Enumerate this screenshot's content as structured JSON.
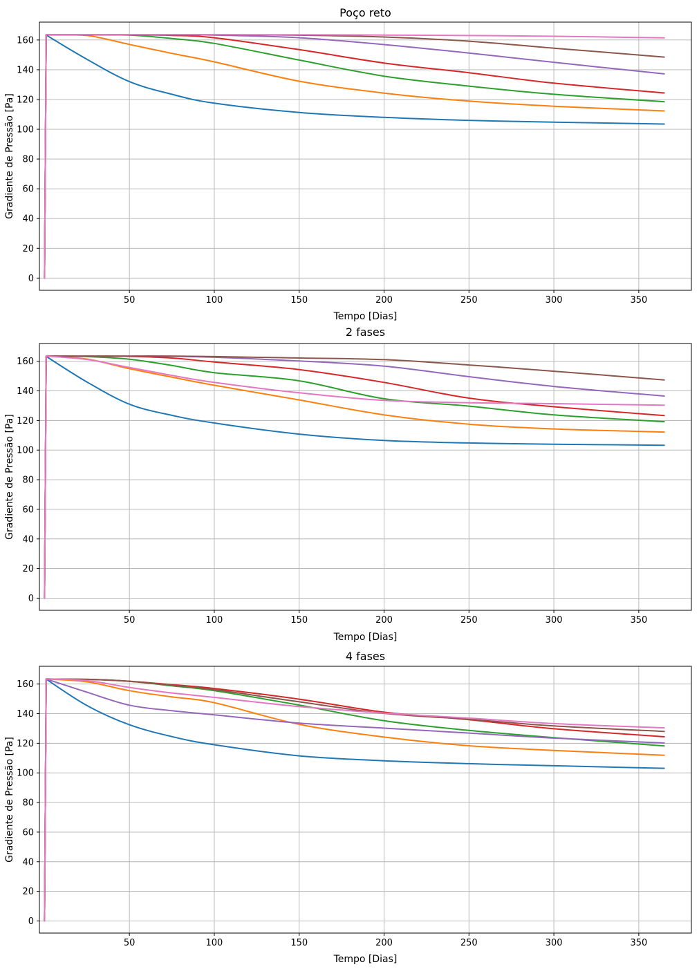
{
  "figure": {
    "background": "#ffffff",
    "grid_color": "#b0b0b0",
    "spine_color": "#000000",
    "text_color": "#000000",
    "line_width": 2
  },
  "chart_data": [
    {
      "type": "line",
      "title": "Poço reto",
      "xlabel": "Tempo [Dias]",
      "ylabel": "Gradiente de Pressão [Pa]",
      "grid": true,
      "legend": "none",
      "xlim": [
        -3,
        381
      ],
      "ylim": [
        -8.2,
        172
      ],
      "x_ticks": [
        50,
        100,
        150,
        200,
        250,
        300,
        350
      ],
      "y_ticks": [
        0,
        20,
        40,
        60,
        80,
        100,
        120,
        140,
        160
      ],
      "x": [
        0,
        1,
        25,
        50,
        75,
        100,
        150,
        200,
        250,
        300,
        365
      ],
      "series": [
        {
          "name": "blue",
          "color": "#1f77b4",
          "values": [
            0,
            163.3,
            147.0,
            132.0,
            123.5,
            117.5,
            111.3,
            108.0,
            106.0,
            104.8,
            103.5
          ]
        },
        {
          "name": "orange",
          "color": "#ff7f0e",
          "values": [
            0,
            163.4,
            163.0,
            157.0,
            151.0,
            145.3,
            132.3,
            124.3,
            118.9,
            115.5,
            112.3
          ]
        },
        {
          "name": "green",
          "color": "#2ca02c",
          "values": [
            0,
            163.4,
            163.4,
            163.3,
            161.0,
            157.7,
            146.5,
            135.7,
            129.0,
            123.5,
            118.5
          ]
        },
        {
          "name": "red",
          "color": "#d62728",
          "values": [
            0,
            163.4,
            163.4,
            163.4,
            163.1,
            161.5,
            153.5,
            144.5,
            138.0,
            131.0,
            124.4
          ]
        },
        {
          "name": "purple",
          "color": "#9467bd",
          "values": [
            0,
            163.5,
            163.5,
            163.5,
            163.5,
            163.3,
            161.5,
            156.9,
            151.2,
            145.0,
            137.2
          ]
        },
        {
          "name": "brown",
          "color": "#8c564b",
          "values": [
            0,
            163.5,
            163.5,
            163.5,
            163.5,
            163.5,
            163.2,
            162.0,
            159.2,
            154.5,
            148.5
          ]
        },
        {
          "name": "pink",
          "color": "#e377c2",
          "values": [
            0,
            163.6,
            163.6,
            163.6,
            163.6,
            163.6,
            163.5,
            163.3,
            163.0,
            162.5,
            161.4
          ]
        }
      ]
    },
    {
      "type": "line",
      "title": "2 fases",
      "xlabel": "Tempo [Dias]",
      "ylabel": "Gradiente de Pressão [Pa]",
      "grid": true,
      "legend": "none",
      "xlim": [
        -3,
        381
      ],
      "ylim": [
        -8.2,
        172
      ],
      "x_ticks": [
        50,
        100,
        150,
        200,
        250,
        300,
        350
      ],
      "y_ticks": [
        0,
        20,
        40,
        60,
        80,
        100,
        120,
        140,
        160
      ],
      "x": [
        0,
        1,
        25,
        50,
        75,
        100,
        150,
        200,
        250,
        300,
        365
      ],
      "series": [
        {
          "name": "blue",
          "color": "#1f77b4",
          "values": [
            0,
            163.3,
            146.0,
            131.0,
            123.5,
            118.3,
            110.8,
            106.5,
            104.8,
            104.0,
            103.3
          ]
        },
        {
          "name": "orange",
          "color": "#ff7f0e",
          "values": [
            0,
            163.4,
            161.5,
            155.0,
            149.3,
            143.8,
            133.9,
            123.8,
            117.5,
            114.3,
            112.2
          ]
        },
        {
          "name": "green",
          "color": "#2ca02c",
          "values": [
            0,
            163.4,
            163.2,
            161.4,
            157.2,
            152.3,
            146.8,
            134.7,
            129.7,
            123.8,
            119.2
          ]
        },
        {
          "name": "red",
          "color": "#d62728",
          "values": [
            0,
            163.4,
            163.4,
            163.3,
            162.2,
            159.5,
            154.4,
            145.7,
            135.1,
            129.3,
            123.3
          ]
        },
        {
          "name": "purple",
          "color": "#9467bd",
          "values": [
            0,
            163.5,
            163.5,
            163.5,
            163.4,
            162.7,
            160.2,
            156.7,
            149.6,
            143.0,
            136.5
          ]
        },
        {
          "name": "brown",
          "color": "#8c564b",
          "values": [
            0,
            163.5,
            163.5,
            163.5,
            163.5,
            163.2,
            162.2,
            161.1,
            157.5,
            153.3,
            147.4
          ]
        },
        {
          "name": "pink",
          "color": "#e377c2",
          "values": [
            0,
            163.5,
            161.2,
            155.8,
            150.5,
            145.7,
            138.7,
            133.6,
            132.0,
            131.4,
            130.3
          ]
        }
      ]
    },
    {
      "type": "line",
      "title": "4 fases",
      "xlabel": "Tempo [Dias]",
      "ylabel": "Gradiente de Pressão [Pa]",
      "grid": true,
      "legend": "none",
      "xlim": [
        -3,
        381
      ],
      "ylim": [
        -8.2,
        172
      ],
      "x_ticks": [
        50,
        100,
        150,
        200,
        250,
        300,
        350
      ],
      "y_ticks": [
        0,
        20,
        40,
        60,
        80,
        100,
        120,
        140,
        160
      ],
      "x": [
        0,
        1,
        25,
        50,
        75,
        100,
        150,
        200,
        250,
        300,
        365
      ],
      "series": [
        {
          "name": "blue",
          "color": "#1f77b4",
          "values": [
            0,
            163.3,
            145.5,
            132.5,
            124.5,
            119.0,
            111.5,
            108.2,
            106.2,
            104.8,
            103.1
          ]
        },
        {
          "name": "orange",
          "color": "#ff7f0e",
          "values": [
            0,
            163.4,
            161.5,
            155.5,
            151.3,
            147.4,
            132.8,
            124.2,
            118.3,
            115.2,
            111.9
          ]
        },
        {
          "name": "green",
          "color": "#2ca02c",
          "values": [
            0,
            163.4,
            163.2,
            161.8,
            158.8,
            155.5,
            145.8,
            135.2,
            128.7,
            123.8,
            118.2
          ]
        },
        {
          "name": "red",
          "color": "#d62728",
          "values": [
            0,
            163.4,
            163.2,
            161.9,
            159.6,
            157.0,
            149.8,
            141.0,
            135.9,
            129.8,
            124.4
          ]
        },
        {
          "name": "purple",
          "color": "#9467bd",
          "values": [
            0,
            163.4,
            154.5,
            145.7,
            142.0,
            139.2,
            133.6,
            130.2,
            126.9,
            123.5,
            120.2
          ]
        },
        {
          "name": "brown",
          "color": "#8c564b",
          "values": [
            0,
            163.4,
            163.2,
            161.8,
            159.2,
            156.2,
            148.0,
            140.2,
            136.2,
            131.7,
            128.0
          ]
        },
        {
          "name": "pink",
          "color": "#e377c2",
          "values": [
            0,
            163.5,
            162.3,
            157.7,
            154.0,
            151.0,
            144.8,
            140.4,
            137.0,
            133.3,
            130.4
          ]
        }
      ]
    }
  ]
}
